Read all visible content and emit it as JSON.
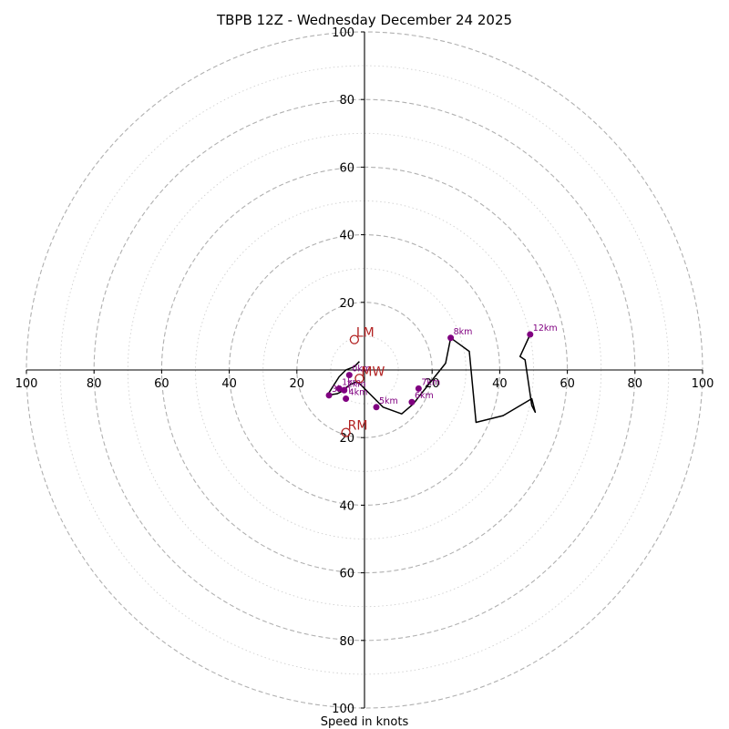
{
  "chart_data": {
    "type": "hodograph",
    "title": "TBPB 12Z - Wednesday December 24 2025",
    "xlabel": "Speed in knots",
    "max_speed": 100,
    "ring_step_major": 20,
    "ring_step_minor": 10,
    "axis_tick_labels": [
      "100",
      "80",
      "60",
      "40",
      "20"
    ],
    "colors": {
      "trace": "#000000",
      "km_markers": "#800080",
      "storm_motion": "#b22222",
      "rings": "#b0b0b0",
      "axes": "#000000"
    },
    "wind_trace": [
      [
        -1.5,
        2.5
      ],
      [
        -3,
        1
      ],
      [
        -5.5,
        0
      ],
      [
        -7.5,
        -2
      ],
      [
        -11,
        -7.5
      ],
      [
        -8,
        -7
      ],
      [
        -7,
        -6.5
      ],
      [
        -4.5,
        -4.5
      ],
      [
        -2.5,
        -3.5
      ],
      [
        -1.5,
        -4
      ],
      [
        1.5,
        -7
      ],
      [
        5.5,
        -11
      ],
      [
        11,
        -13
      ],
      [
        14.5,
        -10
      ],
      [
        16,
        -8
      ],
      [
        20,
        -3
      ],
      [
        24,
        2
      ],
      [
        25.5,
        9.5
      ],
      [
        31,
        5.5
      ],
      [
        33,
        -15.5
      ],
      [
        41,
        -13.5
      ],
      [
        49.5,
        -8.5
      ],
      [
        50.5,
        -12.5
      ],
      [
        49.5,
        -10.5
      ],
      [
        47.5,
        3
      ],
      [
        46,
        4
      ],
      [
        49,
        10.5
      ]
    ],
    "km_markers": [
      {
        "label": "0km",
        "u": -4.5,
        "v": -1.5
      },
      {
        "label": "1km",
        "u": -7.5,
        "v": -5.5
      },
      {
        "label": "2km",
        "u": -6,
        "v": -6
      },
      {
        "label": "3km",
        "u": -10.5,
        "v": -7.5
      },
      {
        "label": "4km",
        "u": -5.5,
        "v": -8.5
      },
      {
        "label": "5km",
        "u": 3.5,
        "v": -11
      },
      {
        "label": "6km",
        "u": 14,
        "v": -9.5
      },
      {
        "label": "7km",
        "u": 16,
        "v": -5.5
      },
      {
        "label": "8km",
        "u": 25.5,
        "v": 9.5
      },
      {
        "label": "12km",
        "u": 49,
        "v": 10.5
      }
    ],
    "storm_motion": [
      {
        "label": "LM",
        "u": -3,
        "v": 9
      },
      {
        "label": "MW",
        "u": -1.5,
        "v": -2.5
      },
      {
        "label": "RM",
        "u": -5.5,
        "v": -18.5
      }
    ]
  }
}
